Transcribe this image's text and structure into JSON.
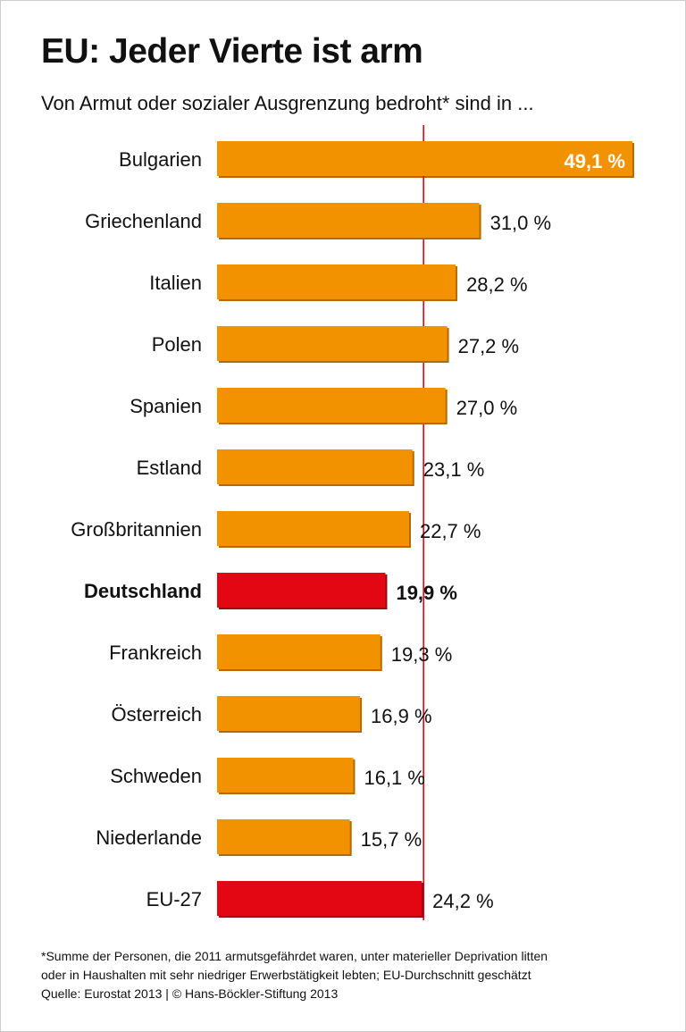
{
  "chart_data": {
    "type": "bar",
    "orientation": "horizontal",
    "title": "EU: Jeder Vierte ist arm",
    "subtitle": "Von Armut oder sozialer Ausgrenzung bedroht* sind in ...",
    "categories": [
      "Bulgarien",
      "Griechenland",
      "Italien",
      "Polen",
      "Spanien",
      "Estland",
      "Großbritannien",
      "Deutschland",
      "Frankreich",
      "Österreich",
      "Schweden",
      "Niederlande",
      "EU-27"
    ],
    "values": [
      49.1,
      31.0,
      28.2,
      27.2,
      27.0,
      23.1,
      22.7,
      19.9,
      19.3,
      16.9,
      16.1,
      15.7,
      24.2
    ],
    "labels": [
      "49,1 %",
      "31,0 %",
      "28,2 %",
      "27,2 %",
      "27,0 %",
      "23,1 %",
      "22,7 %",
      "19,9 %",
      "19,3 %",
      "16,9 %",
      "16,1 %",
      "15,7 %",
      "24,2 %"
    ],
    "highlighted": [
      "Deutschland",
      "EU-27"
    ],
    "reference_line": {
      "value": 24.2
    },
    "xlim": [
      0,
      50
    ],
    "grid": false,
    "colors": {
      "bar": "#f39200",
      "highlight": "#e30613",
      "reference_line": "#e30613",
      "shadow": "#b56a00"
    }
  },
  "footnote": [
    "*Summe der Personen, die 2011 armutsgefährdet waren, unter materieller Deprivation litten",
    "oder in Haushalten mit sehr niedriger Erwerbstätigkeit lebten; EU-Durchschnitt geschätzt",
    "Quelle: Eurostat 2013 | © Hans-Böckler-Stiftung 2013"
  ]
}
